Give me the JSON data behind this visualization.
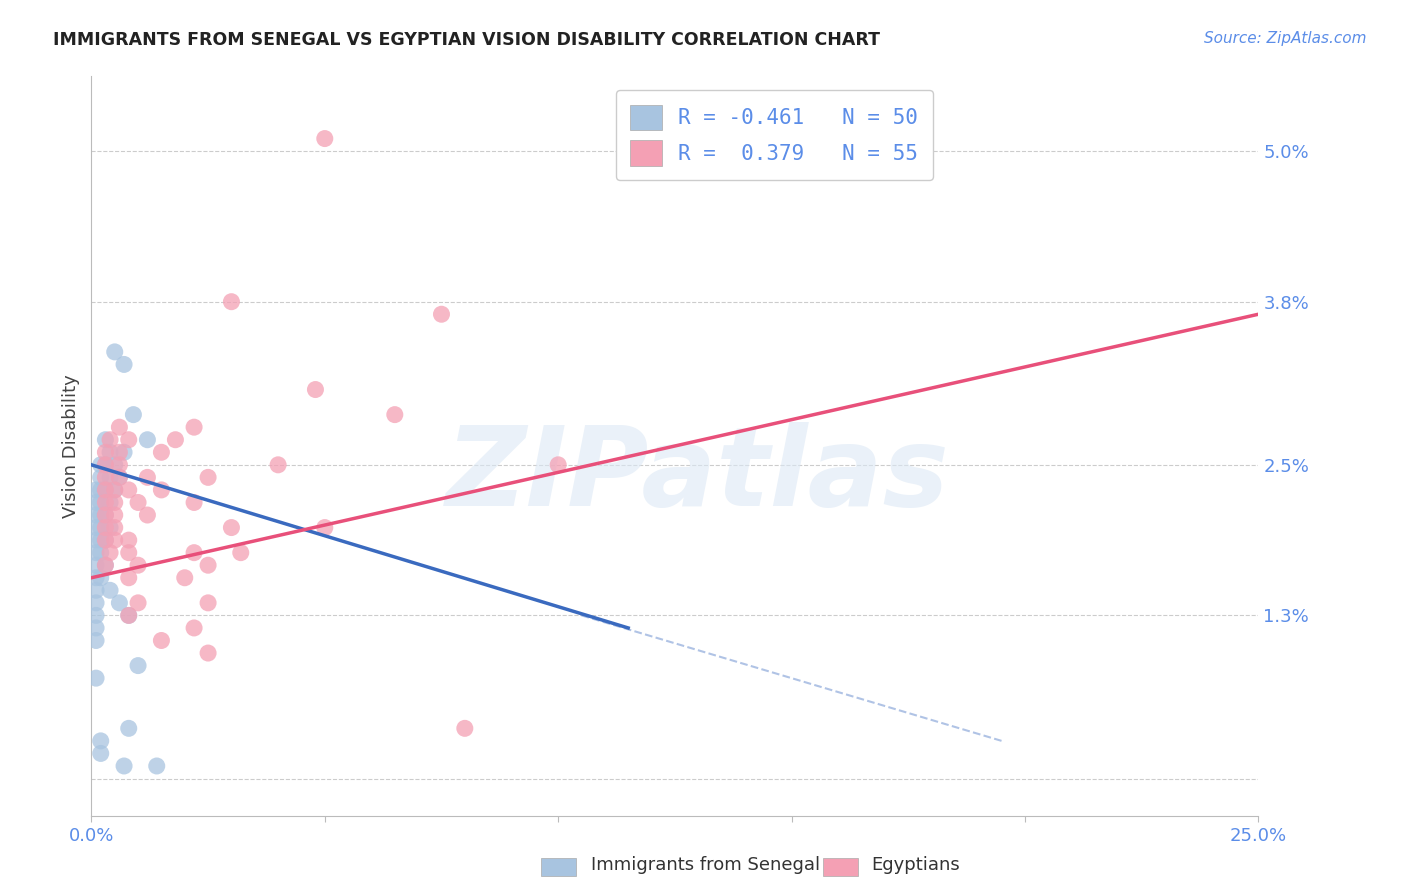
{
  "title": "IMMIGRANTS FROM SENEGAL VS EGYPTIAN VISION DISABILITY CORRELATION CHART",
  "source": "Source: ZipAtlas.com",
  "ylabel": "Vision Disability",
  "yticks": [
    0.0,
    0.013,
    0.025,
    0.038,
    0.05
  ],
  "ytick_labels": [
    "",
    "1.3%",
    "2.5%",
    "3.8%",
    "5.0%"
  ],
  "xticks": [
    0.0,
    0.05,
    0.1,
    0.15,
    0.2,
    0.25
  ],
  "xtick_labels": [
    "0.0%",
    "",
    "",
    "",
    "",
    "25.0%"
  ],
  "xlim": [
    0.0,
    0.25
  ],
  "ylim": [
    -0.003,
    0.056
  ],
  "legend_r_blue": "R = -0.461",
  "legend_n_blue": "N = 50",
  "legend_r_pink": "R =  0.379",
  "legend_n_pink": "N = 55",
  "watermark": "ZIPatlas",
  "blue_color": "#a8c4e0",
  "pink_color": "#f4a0b4",
  "blue_line_color": "#3a6abf",
  "pink_line_color": "#e8507a",
  "blue_scatter": [
    [
      0.005,
      0.034
    ],
    [
      0.007,
      0.033
    ],
    [
      0.009,
      0.029
    ],
    [
      0.012,
      0.027
    ],
    [
      0.003,
      0.027
    ],
    [
      0.004,
      0.026
    ],
    [
      0.007,
      0.026
    ],
    [
      0.002,
      0.025
    ],
    [
      0.003,
      0.025
    ],
    [
      0.005,
      0.025
    ],
    [
      0.002,
      0.024
    ],
    [
      0.004,
      0.024
    ],
    [
      0.006,
      0.024
    ],
    [
      0.001,
      0.023
    ],
    [
      0.002,
      0.023
    ],
    [
      0.003,
      0.023
    ],
    [
      0.005,
      0.023
    ],
    [
      0.001,
      0.022
    ],
    [
      0.002,
      0.022
    ],
    [
      0.004,
      0.022
    ],
    [
      0.001,
      0.021
    ],
    [
      0.002,
      0.021
    ],
    [
      0.003,
      0.021
    ],
    [
      0.001,
      0.02
    ],
    [
      0.002,
      0.02
    ],
    [
      0.004,
      0.02
    ],
    [
      0.001,
      0.019
    ],
    [
      0.002,
      0.019
    ],
    [
      0.003,
      0.019
    ],
    [
      0.001,
      0.018
    ],
    [
      0.002,
      0.018
    ],
    [
      0.001,
      0.017
    ],
    [
      0.003,
      0.017
    ],
    [
      0.001,
      0.016
    ],
    [
      0.002,
      0.016
    ],
    [
      0.001,
      0.015
    ],
    [
      0.004,
      0.015
    ],
    [
      0.001,
      0.014
    ],
    [
      0.006,
      0.014
    ],
    [
      0.001,
      0.013
    ],
    [
      0.008,
      0.013
    ],
    [
      0.001,
      0.012
    ],
    [
      0.001,
      0.011
    ],
    [
      0.01,
      0.009
    ],
    [
      0.001,
      0.008
    ],
    [
      0.008,
      0.004
    ],
    [
      0.002,
      0.003
    ],
    [
      0.002,
      0.002
    ],
    [
      0.007,
      0.001
    ],
    [
      0.014,
      0.001
    ]
  ],
  "pink_scatter": [
    [
      0.05,
      0.051
    ],
    [
      0.03,
      0.038
    ],
    [
      0.075,
      0.037
    ],
    [
      0.048,
      0.031
    ],
    [
      0.065,
      0.029
    ],
    [
      0.006,
      0.028
    ],
    [
      0.022,
      0.028
    ],
    [
      0.004,
      0.027
    ],
    [
      0.008,
      0.027
    ],
    [
      0.018,
      0.027
    ],
    [
      0.003,
      0.026
    ],
    [
      0.006,
      0.026
    ],
    [
      0.015,
      0.026
    ],
    [
      0.003,
      0.025
    ],
    [
      0.006,
      0.025
    ],
    [
      0.04,
      0.025
    ],
    [
      0.1,
      0.025
    ],
    [
      0.003,
      0.024
    ],
    [
      0.006,
      0.024
    ],
    [
      0.012,
      0.024
    ],
    [
      0.025,
      0.024
    ],
    [
      0.003,
      0.023
    ],
    [
      0.005,
      0.023
    ],
    [
      0.008,
      0.023
    ],
    [
      0.015,
      0.023
    ],
    [
      0.003,
      0.022
    ],
    [
      0.005,
      0.022
    ],
    [
      0.01,
      0.022
    ],
    [
      0.022,
      0.022
    ],
    [
      0.003,
      0.021
    ],
    [
      0.005,
      0.021
    ],
    [
      0.012,
      0.021
    ],
    [
      0.003,
      0.02
    ],
    [
      0.005,
      0.02
    ],
    [
      0.03,
      0.02
    ],
    [
      0.05,
      0.02
    ],
    [
      0.003,
      0.019
    ],
    [
      0.005,
      0.019
    ],
    [
      0.008,
      0.019
    ],
    [
      0.004,
      0.018
    ],
    [
      0.008,
      0.018
    ],
    [
      0.022,
      0.018
    ],
    [
      0.032,
      0.018
    ],
    [
      0.003,
      0.017
    ],
    [
      0.01,
      0.017
    ],
    [
      0.025,
      0.017
    ],
    [
      0.008,
      0.016
    ],
    [
      0.02,
      0.016
    ],
    [
      0.01,
      0.014
    ],
    [
      0.025,
      0.014
    ],
    [
      0.008,
      0.013
    ],
    [
      0.022,
      0.012
    ],
    [
      0.015,
      0.011
    ],
    [
      0.025,
      0.01
    ],
    [
      0.08,
      0.004
    ]
  ],
  "blue_line_x": [
    0.0,
    0.115
  ],
  "blue_line_y": [
    0.025,
    0.012
  ],
  "pink_line_x": [
    0.0,
    0.25
  ],
  "pink_line_y": [
    0.016,
    0.037
  ],
  "dashed_line_x": [
    0.105,
    0.195
  ],
  "dashed_line_y": [
    0.013,
    0.003
  ]
}
